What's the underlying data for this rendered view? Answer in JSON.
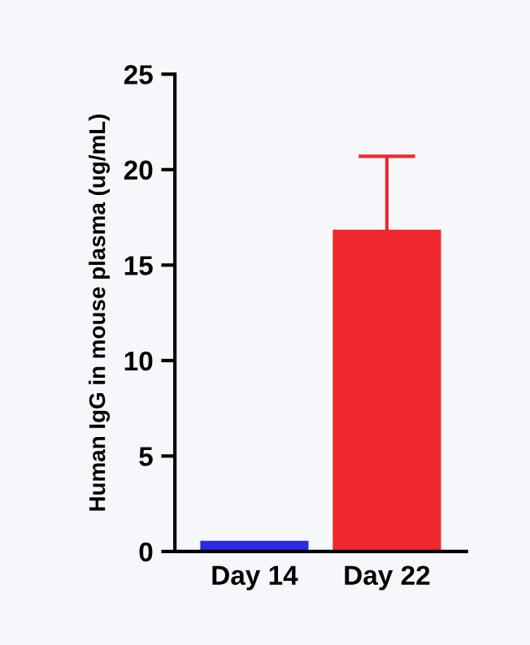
{
  "chart_data": {
    "type": "bar",
    "ylabel": "Human IgG in mouse plasma (ug/mL)",
    "categories": [
      "Day 14",
      "Day 22"
    ],
    "values": [
      0.5,
      16.8
    ],
    "colors": [
      "#2b2be0",
      "#f0282d"
    ],
    "errors": [
      null,
      [
        16.8,
        20.7
      ]
    ],
    "ylim": [
      0,
      25
    ],
    "yticks": [
      0,
      5,
      10,
      15,
      20,
      25
    ],
    "grid": false
  }
}
